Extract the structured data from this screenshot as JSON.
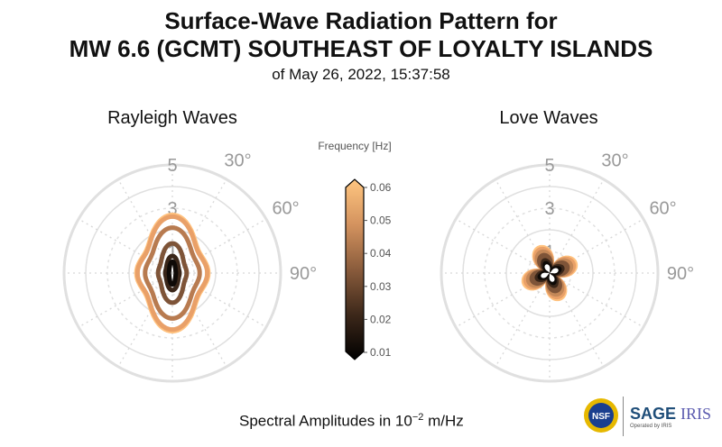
{
  "title_line1": "Surface-Wave Radiation Pattern for",
  "title_line2": "MW 6.6 (GCMT) SOUTHEAST OF LOYALTY ISLANDS",
  "subtitle": "of May 26, 2022, 15:37:58",
  "footer": {
    "prefix": "Spectral Amplitudes in 10",
    "exponent": "−2",
    "suffix": " m/Hz"
  },
  "logos": {
    "nsf": "NSF",
    "sage": "SAGE",
    "iris": "IRIS",
    "operated": "Operated by IRIS"
  },
  "chart_data": [
    {
      "type": "polar-line",
      "title": "Rayleigh Waves",
      "r_ticks": [
        "1",
        "3",
        "5"
      ],
      "angle_ticks": [
        "30°",
        "60°",
        "90°"
      ],
      "r_max": 5,
      "series": [
        {
          "frequency": 0.06,
          "color": "#ffc27f",
          "a": 1.66,
          "b": 2.69,
          "waist": 0.06
        },
        {
          "frequency": 0.055,
          "color": "#e9a068",
          "a": 1.61,
          "b": 2.61,
          "waist": 0.06
        },
        {
          "frequency": 0.045,
          "color": "#b87b50",
          "a": 1.26,
          "b": 2.1,
          "waist": 0.05
        },
        {
          "frequency": 0.035,
          "color": "#7e5438",
          "a": 0.66,
          "b": 1.37,
          "waist": 0.04
        },
        {
          "frequency": 0.02,
          "color": "#3a2619",
          "a": 0.33,
          "b": 0.79,
          "waist": 0.03
        },
        {
          "frequency": 0.012,
          "color": "#0f0a07",
          "a": 0.16,
          "b": 0.53,
          "waist": 0.02
        }
      ]
    },
    {
      "type": "polar-line",
      "title": "Love Waves",
      "r_ticks": [
        "1",
        "3",
        "5"
      ],
      "angle_ticks": [
        "30°",
        "60°",
        "90°"
      ],
      "r_max": 5,
      "series": [
        {
          "frequency": 0.06,
          "color": "#ffc27f",
          "lobe": 1.34
        },
        {
          "frequency": 0.05,
          "color": "#e9a068",
          "lobe": 1.25
        },
        {
          "frequency": 0.045,
          "color": "#c48858",
          "lobe": 1.12
        },
        {
          "frequency": 0.035,
          "color": "#7e5438",
          "lobe": 0.95
        },
        {
          "frequency": 0.025,
          "color": "#3a2619",
          "lobe": 0.78
        },
        {
          "frequency": 0.015,
          "color": "#0f0a07",
          "lobe": 0.58
        }
      ]
    }
  ],
  "colorbar": {
    "label": "Frequency [Hz]",
    "ticks": [
      "0.06",
      "0.05",
      "0.04",
      "0.03",
      "0.02",
      "0.01"
    ],
    "min": 0.01,
    "max": 0.06
  }
}
